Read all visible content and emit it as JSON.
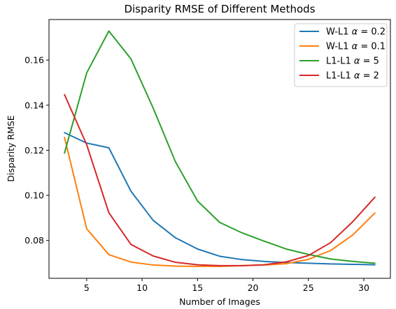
{
  "chart_data": {
    "type": "line",
    "title": "Disparity RMSE of Different Methods",
    "xlabel": "Number of Images",
    "ylabel": "Disparity RMSE",
    "xlim": [
      1.6,
      32.4
    ],
    "ylim": [
      0.0632,
      0.178
    ],
    "xticks": [
      5,
      10,
      15,
      20,
      25,
      30
    ],
    "xtick_labels": [
      "5",
      "10",
      "15",
      "20",
      "25",
      "30"
    ],
    "yticks": [
      0.08,
      0.1,
      0.12,
      0.14,
      0.16
    ],
    "ytick_labels": [
      "0.08",
      "0.10",
      "0.12",
      "0.14",
      "0.16"
    ],
    "grid": false,
    "legend_position": "top-right",
    "x": [
      3,
      5,
      7,
      9,
      11,
      13,
      15,
      17,
      19,
      21,
      23,
      25,
      27,
      29,
      31
    ],
    "series": [
      {
        "name": "W-L1 α = 0.2",
        "legend_prefix": "W-L1 ",
        "legend_symbol": "α",
        "legend_suffix": " = 0.2",
        "color": "#1f77b4",
        "values": [
          0.1278,
          0.1232,
          0.1211,
          0.1018,
          0.0889,
          0.0812,
          0.0762,
          0.073,
          0.0715,
          0.0707,
          0.0702,
          0.0699,
          0.0696,
          0.0694,
          0.0692
        ]
      },
      {
        "name": "W-L1 α = 0.1",
        "legend_prefix": "W-L1 ",
        "legend_symbol": "α",
        "legend_suffix": " = 0.1",
        "color": "#ff7f0e",
        "values": [
          0.1257,
          0.0852,
          0.0737,
          0.0704,
          0.0691,
          0.0686,
          0.0685,
          0.0685,
          0.0688,
          0.0691,
          0.0697,
          0.0716,
          0.0755,
          0.0824,
          0.0922
        ]
      },
      {
        "name": "L1-L1 α = 5",
        "legend_prefix": "L1-L1 ",
        "legend_symbol": "α",
        "legend_suffix": " = 5",
        "color": "#2ca02c",
        "values": [
          0.1188,
          0.1543,
          0.1729,
          0.1605,
          0.1387,
          0.115,
          0.0975,
          0.088,
          0.0834,
          0.0797,
          0.0762,
          0.0738,
          0.0718,
          0.0707,
          0.0699
        ]
      },
      {
        "name": "L1-L1 α = 2",
        "legend_prefix": "L1-L1 ",
        "legend_symbol": "α",
        "legend_suffix": " = 2",
        "color": "#d62728",
        "values": [
          0.1447,
          0.1225,
          0.0923,
          0.0782,
          0.0731,
          0.0703,
          0.0692,
          0.0688,
          0.0688,
          0.0692,
          0.0705,
          0.0733,
          0.079,
          0.0883,
          0.0992
        ]
      }
    ]
  }
}
